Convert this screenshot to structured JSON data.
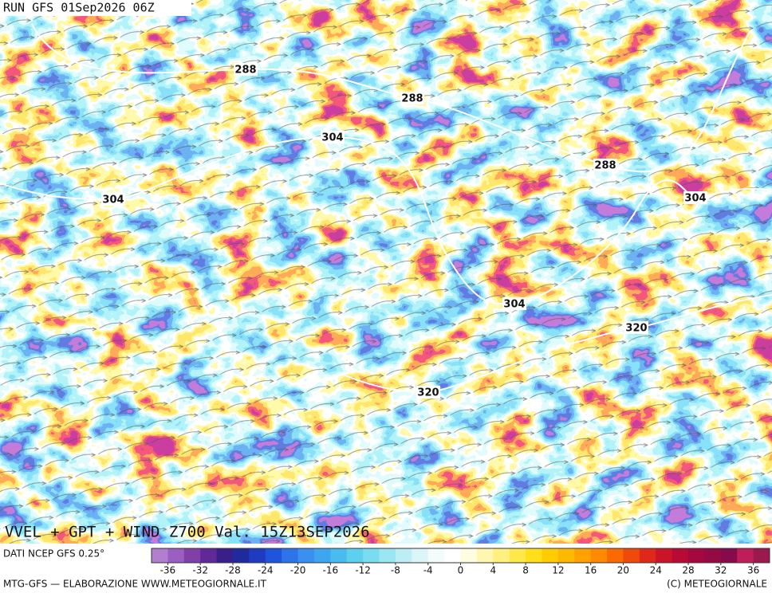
{
  "header": {
    "run": "RUN GFS 01Sep2026 06Z"
  },
  "map": {
    "title": "VVEL + GPT + WIND Z700 Val. 15Z13SEP2026",
    "contour_labels": [
      288,
      288,
      288,
      304,
      304,
      304,
      304,
      320,
      320
    ]
  },
  "colorbar": {
    "source": "DATI NCEP GFS 0.25°",
    "range": [
      -38,
      38
    ],
    "ticks": [
      -36,
      -32,
      -28,
      -24,
      -20,
      -16,
      -12,
      -8,
      -4,
      0,
      4,
      8,
      12,
      16,
      20,
      24,
      28,
      32,
      36
    ],
    "colors": [
      "#b27fd0",
      "#9a5fc0",
      "#8040a8",
      "#5f2a98",
      "#3a1f8a",
      "#1f2a9e",
      "#1f3cc0",
      "#1e55dc",
      "#2d73ea",
      "#3a8ff0",
      "#3ea6f0",
      "#48bcef",
      "#5dd0ee",
      "#7adcf0",
      "#9ae6f2",
      "#bdeef5",
      "#dcf6f8",
      "#f4fbfb",
      "#ffffff",
      "#fffde0",
      "#fff6b0",
      "#fff080",
      "#ffe84a",
      "#ffde1a",
      "#ffcc00",
      "#ffb800",
      "#ffa200",
      "#ff8a00",
      "#fa6a00",
      "#f04a0a",
      "#e0281a",
      "#cc1428",
      "#b80a35",
      "#a4083e",
      "#930a45",
      "#860a4c",
      "#c01e5a",
      "#9a1a50"
    ]
  },
  "footer": {
    "left": "MTG-GFS — ELABORAZIONE WWW.METEOGIORNALE.IT",
    "right": "(C) METEOGIORNALE"
  }
}
